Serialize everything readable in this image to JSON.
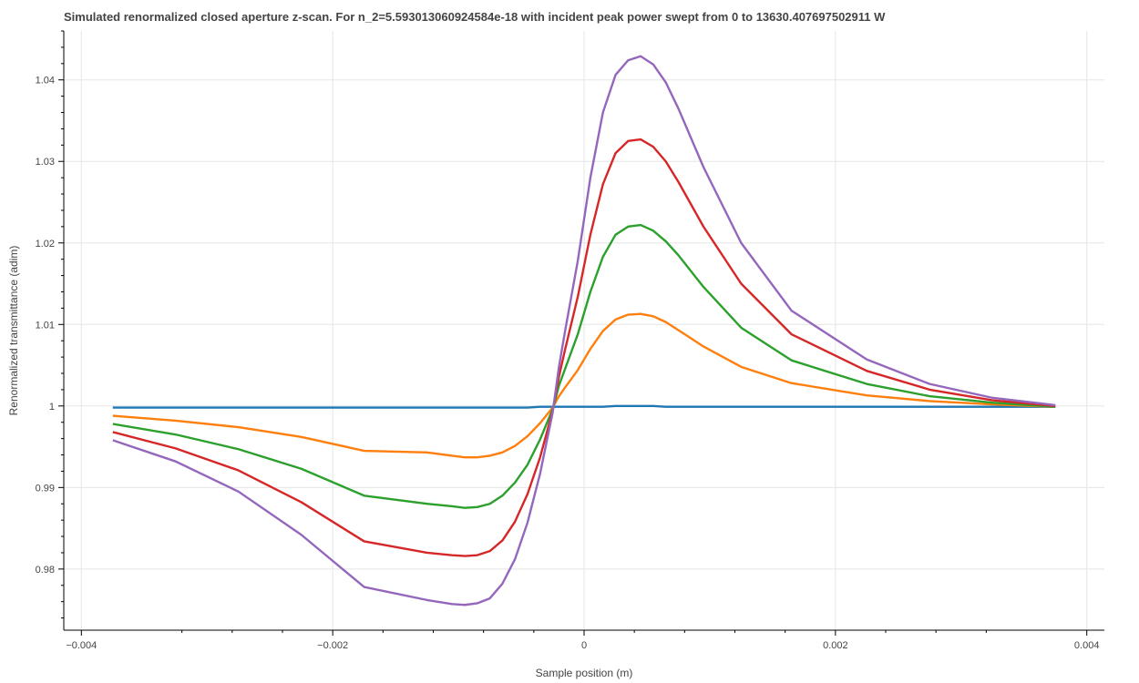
{
  "chart_data": {
    "type": "line",
    "title": "Simulated renormalized closed aperture z-scan. For n_2=5.593013060924584e-18 with incident peak power swept from 0 to 13630.407697502911 W",
    "xlabel": "Sample position (m)",
    "ylabel": "Renormalized transmittance (adim)",
    "xlim": [
      -0.00414,
      0.00414
    ],
    "ylim": [
      0.9725,
      1.046
    ],
    "x_ticks": [
      -0.004,
      -0.002,
      0,
      0.002,
      0.004
    ],
    "x_tick_labels": [
      "−0.004",
      "−0.002",
      "0",
      "0.002",
      "0.004"
    ],
    "y_ticks": [
      0.98,
      0.99,
      1.0,
      1.01,
      1.02,
      1.03,
      1.04
    ],
    "y_tick_labels": [
      "0.98",
      "0.99",
      "1",
      "1.01",
      "1.02",
      "1.03",
      "1.04"
    ],
    "grid": true,
    "x": [
      -0.00375,
      -0.00325,
      -0.00275,
      -0.00225,
      -0.00175,
      -0.00125,
      -0.00105,
      -0.00095,
      -0.00085,
      -0.00075,
      -0.00065,
      -0.00055,
      -0.00045,
      -0.00035,
      -0.00025,
      -0.0002,
      -0.00015,
      -5e-05,
      5e-05,
      0.00015,
      0.00025,
      0.00035,
      0.00045,
      0.00055,
      0.00065,
      0.00075,
      0.00095,
      0.00125,
      0.00165,
      0.00225,
      0.00275,
      0.00325,
      0.00375
    ],
    "series": [
      {
        "color": "#1f77b4",
        "values": [
          0.9998,
          0.9998,
          0.9998,
          0.9998,
          0.9998,
          0.9998,
          0.9998,
          0.9998,
          0.9998,
          0.9998,
          0.9998,
          0.9998,
          0.9998,
          0.9999,
          0.9999,
          0.9999,
          0.9999,
          0.9999,
          0.9999,
          0.9999,
          1.0,
          1.0,
          1.0,
          1.0,
          0.9999,
          0.9999,
          0.9999,
          0.9999,
          0.9999,
          0.9999,
          0.9999,
          0.9999,
          0.9999
        ]
      },
      {
        "color": "#ff7f0e",
        "values": [
          0.9988,
          0.9982,
          0.9974,
          0.9962,
          0.9945,
          0.9943,
          0.9939,
          0.9937,
          0.9937,
          0.9939,
          0.9943,
          0.9951,
          0.9963,
          0.9979,
          0.9998,
          1.0012,
          1.0023,
          1.0044,
          1.007,
          1.0092,
          1.0106,
          1.0112,
          1.0113,
          1.011,
          1.0103,
          1.0093,
          1.0073,
          1.0048,
          1.0028,
          1.0013,
          1.0006,
          1.0002,
          0.9999
        ]
      },
      {
        "color": "#2ca02c",
        "values": [
          0.9978,
          0.9965,
          0.9947,
          0.9923,
          0.989,
          0.988,
          0.9877,
          0.9875,
          0.9876,
          0.988,
          0.989,
          0.9906,
          0.9928,
          0.9959,
          0.9996,
          1.0025,
          1.0046,
          1.0088,
          1.014,
          1.0183,
          1.021,
          1.022,
          1.0222,
          1.0215,
          1.0202,
          1.0185,
          1.0146,
          1.0096,
          1.0056,
          1.0027,
          1.0012,
          1.0004,
          0.9999
        ]
      },
      {
        "color": "#d62728",
        "values": [
          0.9968,
          0.9948,
          0.9921,
          0.9882,
          0.9834,
          0.982,
          0.9817,
          0.9816,
          0.9817,
          0.9822,
          0.9835,
          0.9858,
          0.9892,
          0.9937,
          0.9994,
          1.0036,
          1.007,
          1.0134,
          1.021,
          1.0272,
          1.031,
          1.0325,
          1.0327,
          1.0318,
          1.03,
          1.0275,
          1.022,
          1.015,
          1.0088,
          1.0043,
          1.002,
          1.0007,
          1.0
        ]
      },
      {
        "color": "#9467bd",
        "values": [
          0.9958,
          0.9932,
          0.9895,
          0.9842,
          0.9778,
          0.9762,
          0.9757,
          0.9756,
          0.9758,
          0.9764,
          0.9782,
          0.9812,
          0.9857,
          0.9917,
          0.9992,
          1.0048,
          1.0093,
          1.0178,
          1.028,
          1.036,
          1.0406,
          1.0424,
          1.0429,
          1.0419,
          1.0397,
          1.0365,
          1.0293,
          1.02,
          1.0117,
          1.0057,
          1.0027,
          1.001,
          1.0001
        ]
      }
    ]
  }
}
